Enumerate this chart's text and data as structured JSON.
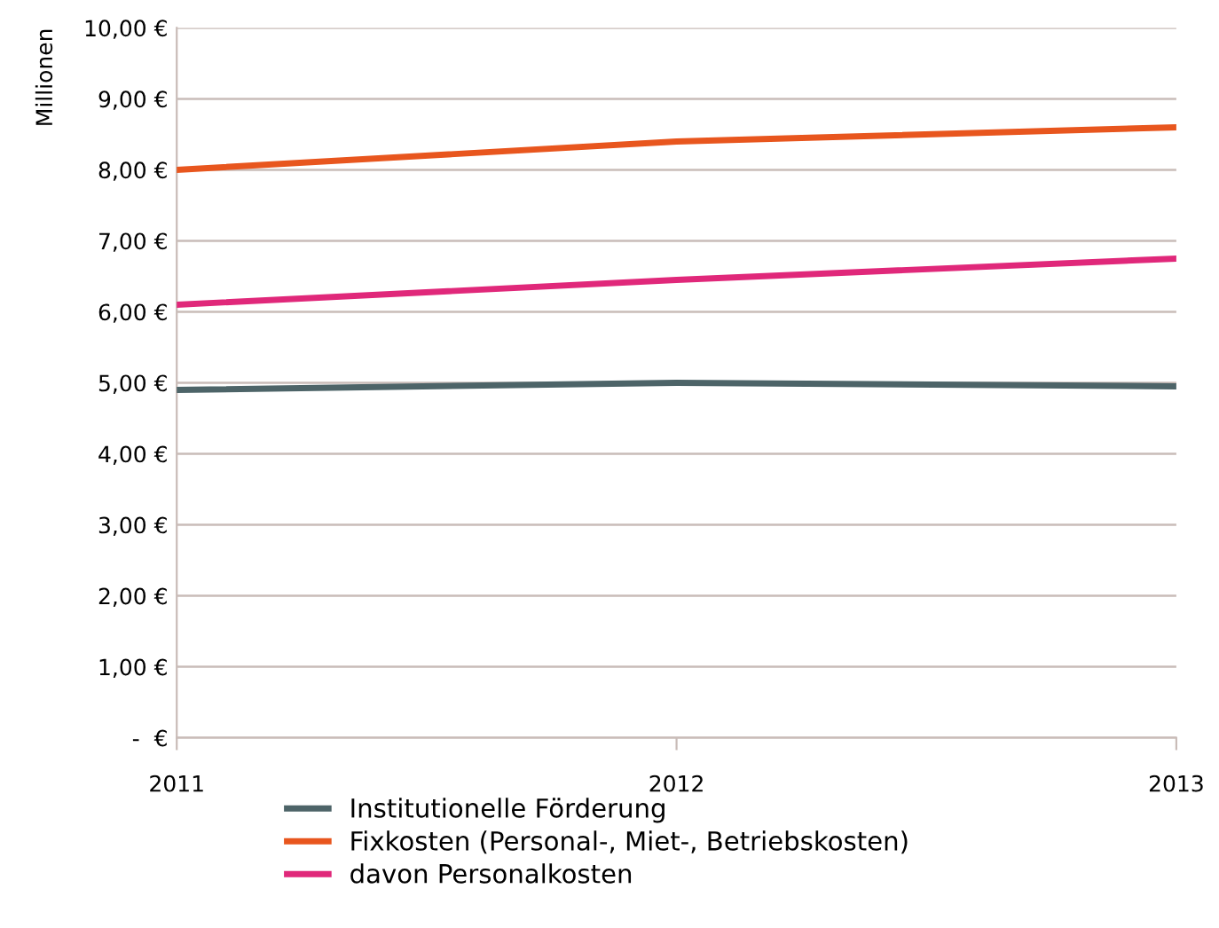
{
  "chart_data": {
    "type": "line",
    "ylabel": "Millionen",
    "x": [
      2011,
      2012,
      2013
    ],
    "series": [
      {
        "name": "Institutionelle Förderung",
        "color": "#4d6468",
        "values": [
          4.9,
          5.0,
          4.95
        ]
      },
      {
        "name": "Fixkosten (Personal-, Miet-, Betriebskosten)",
        "color": "#e8561e",
        "values": [
          8.0,
          8.4,
          8.6
        ]
      },
      {
        "name": "davon Personalkosten",
        "color": "#e0287a",
        "values": [
          6.1,
          6.45,
          6.75
        ]
      }
    ],
    "xlim": [
      2011,
      2013
    ],
    "xticks": [
      2011,
      2012,
      2013
    ],
    "ylim": [
      0,
      10
    ],
    "yticks": [
      {
        "value": 0,
        "label": "-  €"
      },
      {
        "value": 1,
        "label": "1,00 €"
      },
      {
        "value": 2,
        "label": "2,00 €"
      },
      {
        "value": 3,
        "label": "3,00 €"
      },
      {
        "value": 4,
        "label": "4,00 €"
      },
      {
        "value": 5,
        "label": "5,00 €"
      },
      {
        "value": 6,
        "label": "6,00 €"
      },
      {
        "value": 7,
        "label": "7,00 €"
      },
      {
        "value": 8,
        "label": "8,00 €"
      },
      {
        "value": 9,
        "label": "9,00 €"
      },
      {
        "value": 10,
        "label": "10,00 €"
      }
    ],
    "grid": "y",
    "legend": "bottom",
    "marker": "none",
    "line_style": "solid"
  }
}
